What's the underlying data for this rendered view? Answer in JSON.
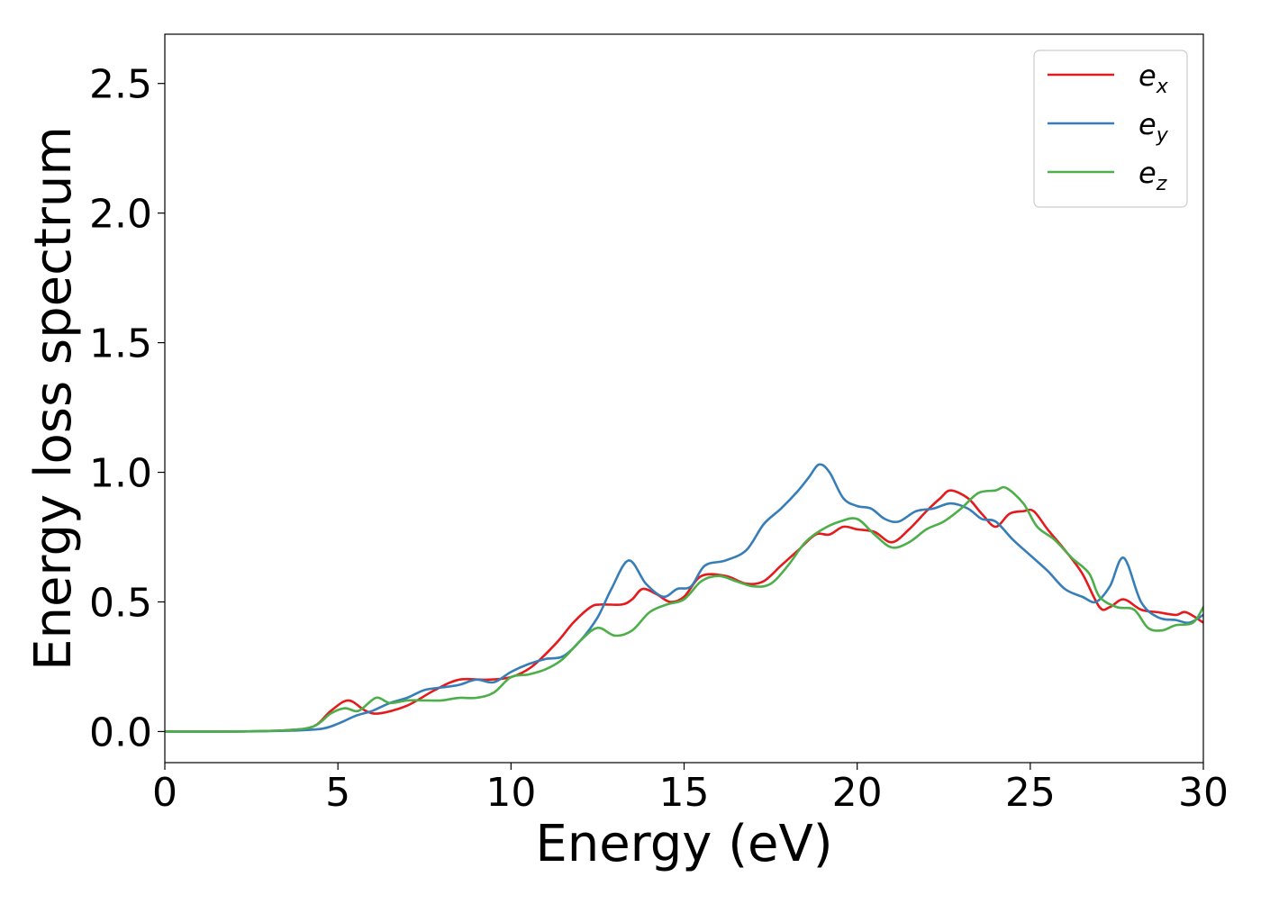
{
  "chart_data": {
    "type": "line",
    "title": "",
    "xlabel": "Energy (eV)",
    "ylabel": "Energy loss spectrum",
    "xlim": [
      0,
      30
    ],
    "ylim": [
      -0.12,
      2.69
    ],
    "xticks": [
      0,
      5,
      10,
      15,
      20,
      25,
      30
    ],
    "xtick_labels": [
      "0",
      "5",
      "10",
      "15",
      "20",
      "25",
      "30"
    ],
    "yticks": [
      0.0,
      0.5,
      1.0,
      1.5,
      2.0,
      2.5
    ],
    "ytick_labels": [
      "0.0",
      "0.5",
      "1.0",
      "1.5",
      "2.0",
      "2.5"
    ],
    "grid": false,
    "legend_position": "top-right",
    "series": [
      {
        "name": "e_x",
        "label_base": "e",
        "label_sub": "x",
        "color": "#e41a1c",
        "x": [
          0,
          2,
          3.5,
          4.3,
          4.8,
          5.3,
          5.8,
          6.2,
          7,
          7.8,
          8.5,
          9.3,
          10,
          10.6,
          11.3,
          11.8,
          12.3,
          12.6,
          13.2,
          13.5,
          13.8,
          14.2,
          14.6,
          15,
          15.5,
          16.2,
          16.8,
          17.3,
          17.8,
          18.3,
          18.8,
          19.2,
          19.6,
          20,
          20.5,
          21,
          21.5,
          22,
          22.4,
          22.7,
          23.2,
          23.6,
          24,
          24.4,
          24.8,
          25.1,
          25.5,
          26,
          26.5,
          27,
          27.3,
          27.7,
          28.2,
          28.7,
          29.2,
          29.5,
          30
        ],
        "y": [
          0.0,
          0.0,
          0.005,
          0.02,
          0.08,
          0.12,
          0.08,
          0.07,
          0.1,
          0.16,
          0.2,
          0.2,
          0.21,
          0.25,
          0.34,
          0.42,
          0.48,
          0.49,
          0.49,
          0.51,
          0.55,
          0.53,
          0.5,
          0.52,
          0.6,
          0.6,
          0.57,
          0.58,
          0.64,
          0.7,
          0.76,
          0.76,
          0.79,
          0.78,
          0.77,
          0.73,
          0.78,
          0.85,
          0.9,
          0.93,
          0.9,
          0.84,
          0.79,
          0.84,
          0.85,
          0.85,
          0.78,
          0.7,
          0.61,
          0.48,
          0.48,
          0.51,
          0.47,
          0.46,
          0.45,
          0.46,
          0.42
        ]
      },
      {
        "name": "e_y",
        "label_base": "e",
        "label_sub": "y",
        "color": "#377eb8",
        "x": [
          0,
          2,
          3.5,
          4.5,
          5,
          5.5,
          6,
          6.5,
          7,
          7.5,
          8,
          8.5,
          9,
          9.5,
          10,
          10.5,
          11,
          11.5,
          12,
          12.5,
          12.9,
          13.4,
          13.9,
          14.4,
          14.8,
          15.2,
          15.6,
          16.2,
          16.8,
          17.3,
          17.8,
          18.3,
          18.6,
          18.9,
          19.2,
          19.6,
          20,
          20.4,
          20.8,
          21.2,
          21.7,
          22.2,
          22.7,
          23.2,
          23.6,
          24,
          24.5,
          25,
          25.5,
          26,
          26.5,
          26.9,
          27.3,
          27.7,
          28.2,
          28.7,
          29.2,
          29.6,
          30
        ],
        "y": [
          0.0,
          0.0,
          0.003,
          0.01,
          0.03,
          0.06,
          0.08,
          0.11,
          0.13,
          0.16,
          0.17,
          0.18,
          0.2,
          0.19,
          0.23,
          0.26,
          0.28,
          0.29,
          0.35,
          0.44,
          0.55,
          0.66,
          0.57,
          0.52,
          0.55,
          0.56,
          0.64,
          0.66,
          0.7,
          0.8,
          0.86,
          0.93,
          0.98,
          1.03,
          1.0,
          0.9,
          0.87,
          0.86,
          0.82,
          0.81,
          0.85,
          0.86,
          0.88,
          0.86,
          0.82,
          0.81,
          0.74,
          0.68,
          0.62,
          0.55,
          0.52,
          0.5,
          0.56,
          0.67,
          0.5,
          0.44,
          0.43,
          0.42,
          0.45
        ]
      },
      {
        "name": "e_z",
        "label_base": "e",
        "label_sub": "z",
        "color": "#4daf4a",
        "x": [
          0,
          2,
          3.5,
          4.3,
          4.8,
          5.2,
          5.6,
          6.1,
          6.5,
          7,
          7.5,
          8,
          8.5,
          9,
          9.5,
          10,
          10.5,
          11,
          11.5,
          12,
          12.5,
          13,
          13.5,
          14,
          14.5,
          15,
          15.5,
          16,
          16.5,
          17,
          17.5,
          18,
          18.5,
          19,
          19.5,
          20,
          20.5,
          21,
          21.5,
          22,
          22.5,
          23,
          23.5,
          24,
          24.3,
          24.8,
          25.2,
          25.7,
          26.2,
          26.7,
          27,
          27.5,
          28,
          28.4,
          28.8,
          29.2,
          29.7,
          30
        ],
        "y": [
          0.0,
          0.0,
          0.005,
          0.02,
          0.07,
          0.09,
          0.08,
          0.13,
          0.11,
          0.12,
          0.12,
          0.12,
          0.13,
          0.13,
          0.15,
          0.21,
          0.22,
          0.24,
          0.28,
          0.35,
          0.4,
          0.37,
          0.39,
          0.46,
          0.49,
          0.51,
          0.58,
          0.6,
          0.58,
          0.56,
          0.57,
          0.64,
          0.73,
          0.78,
          0.81,
          0.82,
          0.76,
          0.71,
          0.73,
          0.78,
          0.81,
          0.86,
          0.92,
          0.93,
          0.94,
          0.88,
          0.79,
          0.74,
          0.67,
          0.61,
          0.52,
          0.48,
          0.47,
          0.4,
          0.39,
          0.41,
          0.42,
          0.48
        ]
      }
    ]
  }
}
